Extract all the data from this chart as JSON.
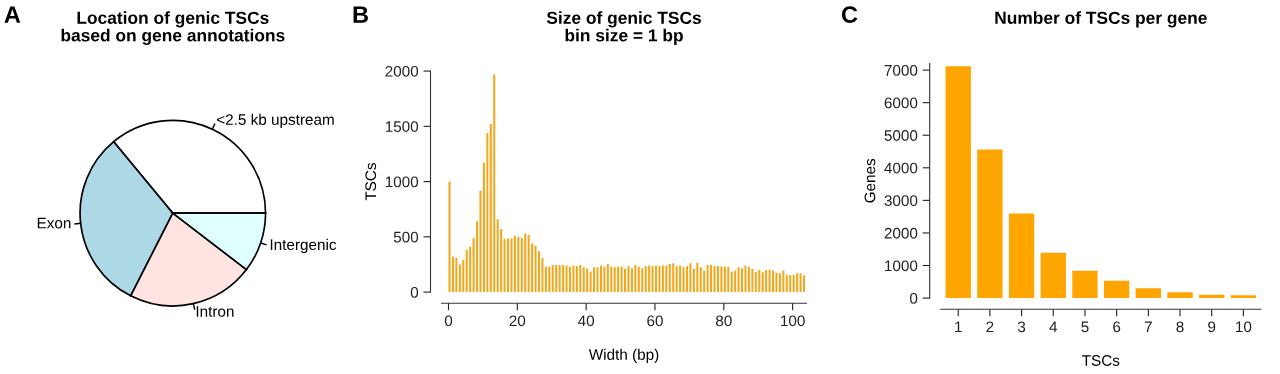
{
  "chart_data": [
    {
      "type": "pie",
      "title": "Location of genic TSCs\nbased on gene annotations",
      "annotations": [
        "A"
      ],
      "categories": [
        "<2.5 kb upstream",
        "Exon",
        "Intron",
        "Intergenic"
      ],
      "values": [
        36.0,
        31.5,
        22.1,
        10.4
      ],
      "colors": [
        "#ffffff",
        "#add8e6",
        "#ffe4e1",
        "#e0ffff"
      ]
    },
    {
      "type": "histogram",
      "title": "Size of genic TSCs\nbin size = 1 bp",
      "annotations": [
        "B"
      ],
      "xlabel": "Width (bp)",
      "ylabel": "TSCs",
      "color": "#f2a81d",
      "bins": [
        0,
        1,
        2,
        3,
        4,
        5,
        6,
        7,
        8,
        9,
        10,
        11,
        12,
        13,
        14,
        15,
        16,
        17,
        18,
        19,
        20,
        21,
        22,
        23,
        24,
        25,
        26,
        27,
        28,
        29,
        30,
        31,
        32,
        33,
        34,
        35,
        36,
        37,
        38,
        39,
        40,
        41,
        42,
        43,
        44,
        45,
        46,
        47,
        48,
        49,
        50,
        51,
        52,
        53,
        54,
        55,
        56,
        57,
        58,
        59,
        60,
        61,
        62,
        63,
        64,
        65,
        66,
        67,
        68,
        69,
        70,
        71,
        72,
        73,
        74,
        75,
        76,
        77,
        78,
        79,
        80,
        81,
        82,
        83,
        84,
        85,
        86,
        87,
        88,
        89,
        90,
        91,
        92,
        93,
        94,
        95,
        96,
        97,
        98,
        99,
        100,
        101,
        102,
        103,
        104
      ],
      "values": [
        1000,
        320,
        310,
        250,
        290,
        380,
        410,
        490,
        640,
        920,
        1170,
        1440,
        1520,
        1970,
        660,
        570,
        480,
        485,
        485,
        510,
        500,
        490,
        530,
        520,
        440,
        420,
        370,
        310,
        230,
        230,
        245,
        245,
        245,
        245,
        240,
        230,
        240,
        235,
        245,
        225,
        215,
        185,
        225,
        225,
        240,
        230,
        255,
        230,
        225,
        230,
        230,
        210,
        235,
        215,
        245,
        230,
        215,
        235,
        240,
        235,
        240,
        235,
        240,
        240,
        255,
        260,
        235,
        240,
        225,
        235,
        260,
        210,
        265,
        225,
        195,
        245,
        245,
        235,
        235,
        230,
        230,
        230,
        185,
        195,
        225,
        215,
        240,
        230,
        210,
        180,
        200,
        180,
        200,
        200,
        195,
        175,
        170,
        195,
        155,
        155,
        155,
        170,
        170,
        150
      ],
      "xlim": [
        -2,
        104
      ],
      "xticks": [
        0,
        20,
        40,
        60,
        80,
        100
      ],
      "ylim": [
        0,
        2000
      ],
      "yticks": [
        0,
        500,
        1000,
        1500,
        2000
      ]
    },
    {
      "type": "bar",
      "title": "Number of TSCs per gene",
      "annotations": [
        "C"
      ],
      "xlabel": "TSCs",
      "ylabel": "Genes",
      "color": "#ffa500",
      "categories": [
        "1",
        "2",
        "3",
        "4",
        "5",
        "6",
        "7",
        "8",
        "9",
        "10"
      ],
      "values": [
        7120,
        4560,
        2600,
        1390,
        840,
        530,
        300,
        180,
        100,
        90
      ],
      "ylim": [
        0,
        7200
      ],
      "yticks": [
        0,
        1000,
        2000,
        3000,
        4000,
        5000,
        6000,
        7000
      ]
    }
  ]
}
